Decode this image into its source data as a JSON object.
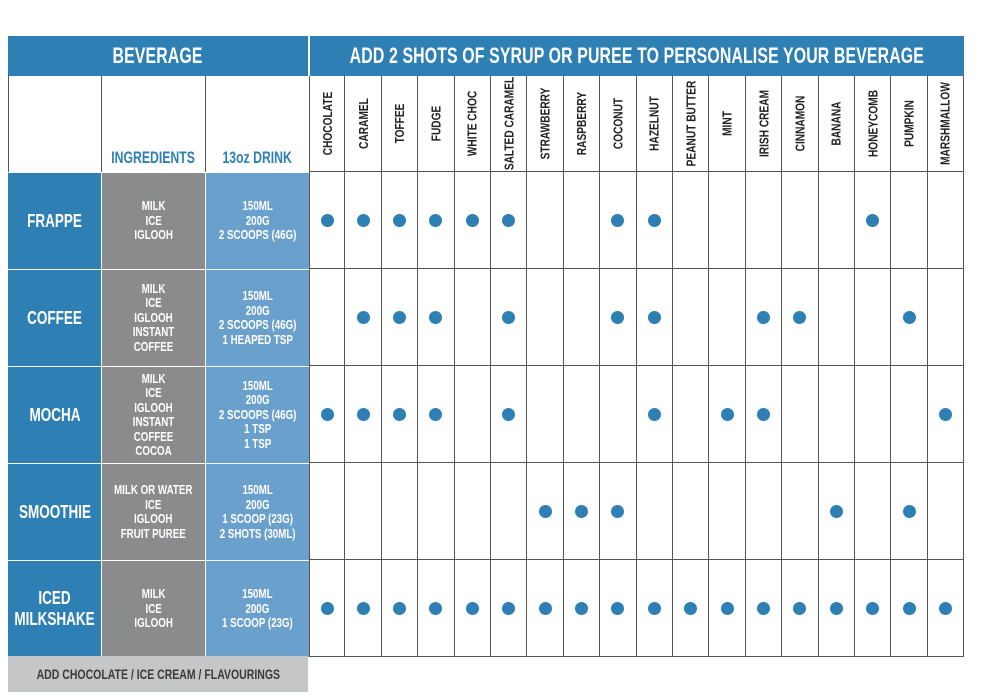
{
  "header": {
    "beverage_label": "BEVERAGE",
    "syrup_label": "ADD 2 SHOTS OF SYRUP OR PUREE TO PERSONALISE YOUR BEVERAGE"
  },
  "subheader": {
    "ingredients_label": "INGREDIENTS",
    "drink_label": "13oz DRINK"
  },
  "flavours": [
    "CHOCOLATE",
    "CARAMEL",
    "TOFFEE",
    "FUDGE",
    "WHITE CHOC",
    "SALTED CARAMEL",
    "STRAWBERRY",
    "RASPBERRY",
    "COCONUT",
    "HAZELNUT",
    "PEANUT BUTTER",
    "MINT",
    "IRISH CREAM",
    "CINNAMON",
    "BANANA",
    "HONEYCOMB",
    "PUMPKIN",
    "MARSHMALLOW"
  ],
  "rows": [
    {
      "name": "FRAPPE",
      "ingredients": "MILK\nICE\nIGLOOH",
      "quantities": "150ML\n200G\n2 SCOOPS (46G)",
      "flavours": [
        1,
        1,
        1,
        1,
        1,
        1,
        0,
        0,
        1,
        1,
        0,
        0,
        0,
        0,
        0,
        1,
        0,
        0
      ]
    },
    {
      "name": "COFFEE",
      "ingredients": "MILK\nICE\nIGLOOH\nINSTANT COFFEE",
      "quantities": "150ML\n200G\n2 SCOOPS (46G)\n1 HEAPED TSP",
      "flavours": [
        0,
        1,
        1,
        1,
        0,
        1,
        0,
        0,
        1,
        1,
        0,
        0,
        1,
        1,
        0,
        0,
        1,
        0
      ]
    },
    {
      "name": "MOCHA",
      "ingredients": "MILK\nICE\nIGLOOH\nINSTANT COFFEE\nCOCOA",
      "quantities": "150ML\n200G\n2 SCOOPS (46G)\n1 TSP\n1 TSP",
      "flavours": [
        1,
        1,
        1,
        1,
        0,
        1,
        0,
        0,
        0,
        1,
        0,
        1,
        1,
        0,
        0,
        0,
        0,
        1
      ]
    },
    {
      "name": "SMOOTHIE",
      "ingredients": "MILK OR WATER\nICE\nIGLOOH\nFRUIT PUREE",
      "quantities": "150ML\n200G\n1 SCOOP (23G)\n2 SHOTS (30ML)",
      "flavours": [
        0,
        0,
        0,
        0,
        0,
        0,
        1,
        1,
        1,
        0,
        0,
        0,
        0,
        0,
        1,
        0,
        1,
        0
      ]
    },
    {
      "name": "ICED\nMILKSHAKE",
      "ingredients": "MILK\nICE\nIGLOOH",
      "quantities": "150ML\n200G\n1 SCOOP (23G)",
      "flavours": [
        1,
        1,
        1,
        1,
        1,
        1,
        1,
        1,
        1,
        1,
        1,
        1,
        1,
        1,
        1,
        1,
        1,
        1
      ]
    }
  ],
  "footer": {
    "label": "ADD CHOCOLATE / ICE CREAM / FLAVOURINGS"
  },
  "colors": {
    "brand_blue": "#2e7fb3",
    "light_blue": "#6aa0cc",
    "grey": "#8a8b8d",
    "footer_grey": "#c5c6c8"
  }
}
